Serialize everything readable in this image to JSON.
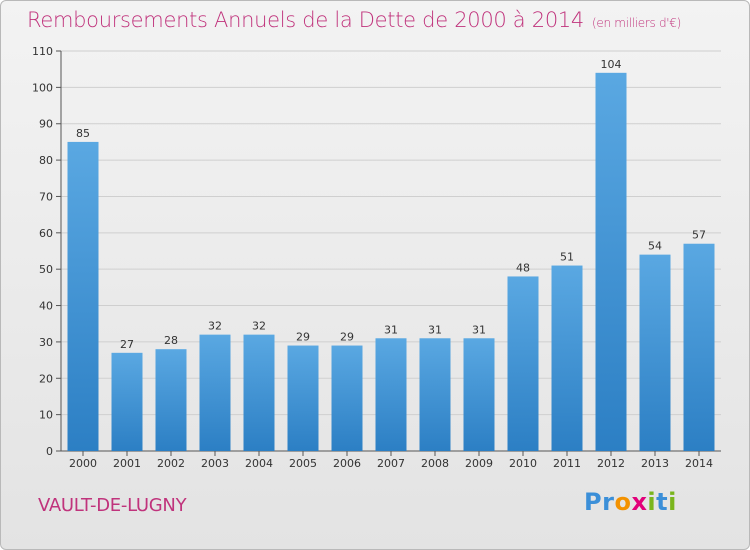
{
  "header": {
    "title": "Remboursements Annuels de la Dette de 2000 à 2014",
    "subtitle": "(en milliers d'€)"
  },
  "footer": {
    "place": "VAULT-DE-LUGNY",
    "logo_letters": [
      "P",
      "r",
      "o",
      "x",
      "i",
      "t",
      "i"
    ]
  },
  "colors": {
    "title": "#c0337c",
    "bar_light": "#5aa8e2",
    "bar_dark": "#2c7fc4",
    "grid": "#cfcfcf",
    "logo": [
      "#3b8fd8",
      "#3b8fd8",
      "#f39200",
      "#e2007a",
      "#7ab51d",
      "#3b8fd8",
      "#7ab51d"
    ]
  },
  "chart_data": {
    "type": "bar",
    "categories": [
      "2000",
      "2001",
      "2002",
      "2003",
      "2004",
      "2005",
      "2006",
      "2007",
      "2008",
      "2009",
      "2010",
      "2011",
      "2012",
      "2013",
      "2014"
    ],
    "values": [
      85,
      27,
      28,
      32,
      32,
      29,
      29,
      31,
      31,
      31,
      48,
      51,
      104,
      54,
      57
    ],
    "ylim": [
      0,
      110
    ],
    "yticks": [
      0,
      10,
      20,
      30,
      40,
      50,
      60,
      70,
      80,
      90,
      100,
      110
    ],
    "grid": true
  }
}
